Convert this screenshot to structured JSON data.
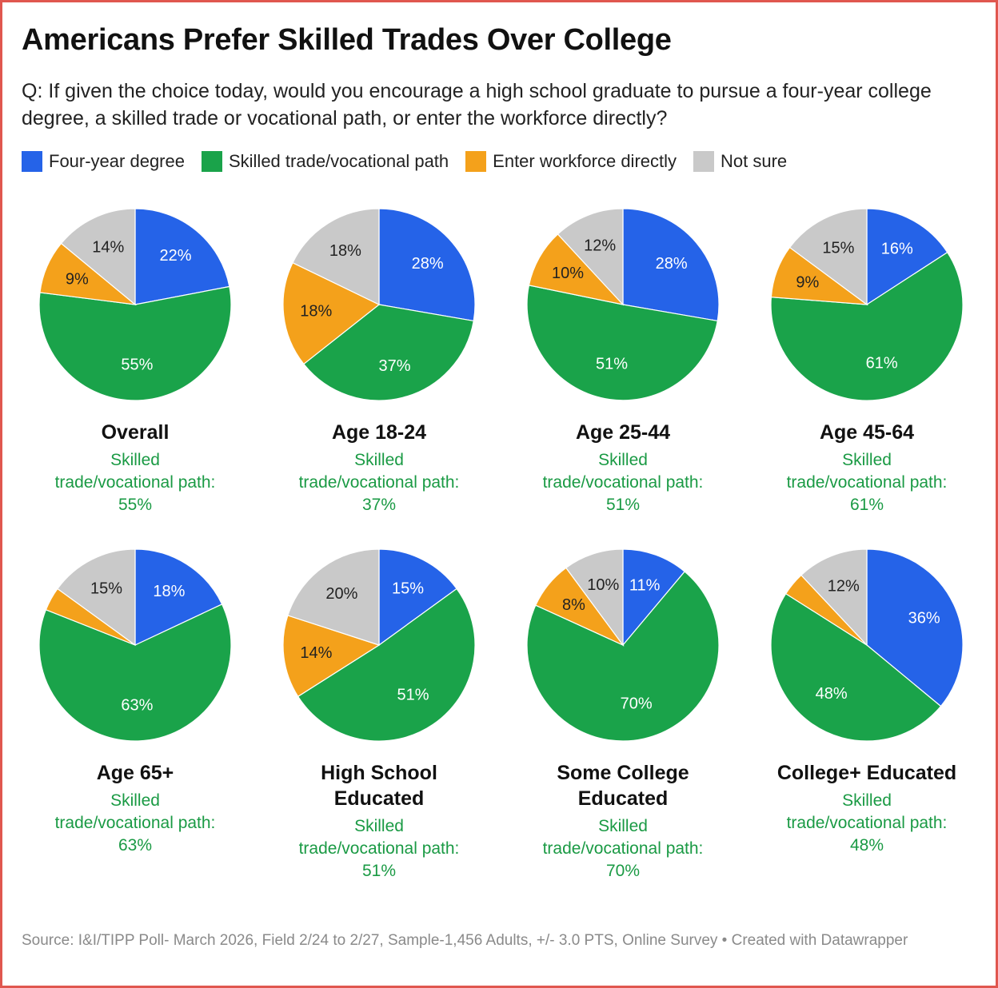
{
  "title": "Americans Prefer Skilled Trades Over College",
  "subtitle": "Q: If given the choice today, would you encourage a high school graduate to pursue a four-year college degree, a skilled trade or vocational path, or enter the workforce directly?",
  "source": "Source: I&I/TIPP Poll- March 2026, Field 2/24 to 2/27, Sample-1,456 Adults, +/- 3.0 PTS, Online Survey • Created with Datawrapper",
  "colors": {
    "four_year": "#2563e8",
    "skilled": "#1aa34a",
    "workforce": "#f4a11b",
    "not_sure": "#c9c9c9",
    "accent_text": "#1a9a44"
  },
  "legend": [
    {
      "label": "Four-year degree",
      "color": "#2563e8"
    },
    {
      "label": "Skilled trade/vocational path",
      "color": "#1aa34a"
    },
    {
      "label": "Enter workforce directly",
      "color": "#f4a11b"
    },
    {
      "label": "Not sure",
      "color": "#c9c9c9"
    }
  ],
  "chart_data": [
    {
      "type": "pie",
      "title": "Overall",
      "note": [
        "Skilled",
        "trade/vocational path:",
        "55%"
      ],
      "categories": [
        "Four-year degree",
        "Skilled trade/vocational path",
        "Enter workforce directly",
        "Not sure"
      ],
      "values": [
        22,
        55,
        9,
        14
      ],
      "labels": [
        "22%",
        "55%",
        "9%",
        "14%"
      ]
    },
    {
      "type": "pie",
      "title": "Age 18-24",
      "note": [
        "Skilled",
        "trade/vocational path:",
        "37%"
      ],
      "categories": [
        "Four-year degree",
        "Skilled trade/vocational path",
        "Enter workforce directly",
        "Not sure"
      ],
      "values": [
        28,
        37,
        18,
        18
      ],
      "labels": [
        "28%",
        "37%",
        "18%",
        "18%"
      ]
    },
    {
      "type": "pie",
      "title": "Age 25-44",
      "note": [
        "Skilled",
        "trade/vocational path:",
        "51%"
      ],
      "categories": [
        "Four-year degree",
        "Skilled trade/vocational path",
        "Enter workforce directly",
        "Not sure"
      ],
      "values": [
        28,
        51,
        10,
        12
      ],
      "labels": [
        "28%",
        "51%",
        "10%",
        "12%"
      ]
    },
    {
      "type": "pie",
      "title": "Age 45-64",
      "note": [
        "Skilled",
        "trade/vocational path:",
        "61%"
      ],
      "categories": [
        "Four-year degree",
        "Skilled trade/vocational path",
        "Enter workforce directly",
        "Not sure"
      ],
      "values": [
        16,
        61,
        9,
        15
      ],
      "labels": [
        "16%",
        "61%",
        "9%",
        "15%"
      ]
    },
    {
      "type": "pie",
      "title": "Age 65+",
      "note": [
        "Skilled",
        "trade/vocational path:",
        "63%"
      ],
      "categories": [
        "Four-year degree",
        "Skilled trade/vocational path",
        "Enter workforce directly",
        "Not sure"
      ],
      "values": [
        18,
        63,
        4,
        15
      ],
      "labels": [
        "18%",
        "63%",
        "",
        "15%"
      ]
    },
    {
      "type": "pie",
      "title": "High School Educated",
      "title_lines": [
        "High School",
        "Educated"
      ],
      "note": [
        "Skilled",
        "trade/vocational path:",
        "51%"
      ],
      "categories": [
        "Four-year degree",
        "Skilled trade/vocational path",
        "Enter workforce directly",
        "Not sure"
      ],
      "values": [
        15,
        51,
        14,
        20
      ],
      "labels": [
        "15%",
        "51%",
        "14%",
        "20%"
      ]
    },
    {
      "type": "pie",
      "title": "Some College Educated",
      "title_lines": [
        "Some College",
        "Educated"
      ],
      "note": [
        "Skilled",
        "trade/vocational path:",
        "70%"
      ],
      "categories": [
        "Four-year degree",
        "Skilled trade/vocational path",
        "Enter workforce directly",
        "Not sure"
      ],
      "values": [
        11,
        70,
        8,
        10
      ],
      "labels": [
        "11%",
        "70%",
        "8%",
        "10%"
      ]
    },
    {
      "type": "pie",
      "title": "College+ Educated",
      "note": [
        "Skilled",
        "trade/vocational path:",
        "48%"
      ],
      "categories": [
        "Four-year degree",
        "Skilled trade/vocational path",
        "Enter workforce directly",
        "Not sure"
      ],
      "values": [
        36,
        48,
        4,
        12
      ],
      "labels": [
        "36%",
        "48%",
        "",
        "12%"
      ]
    }
  ]
}
